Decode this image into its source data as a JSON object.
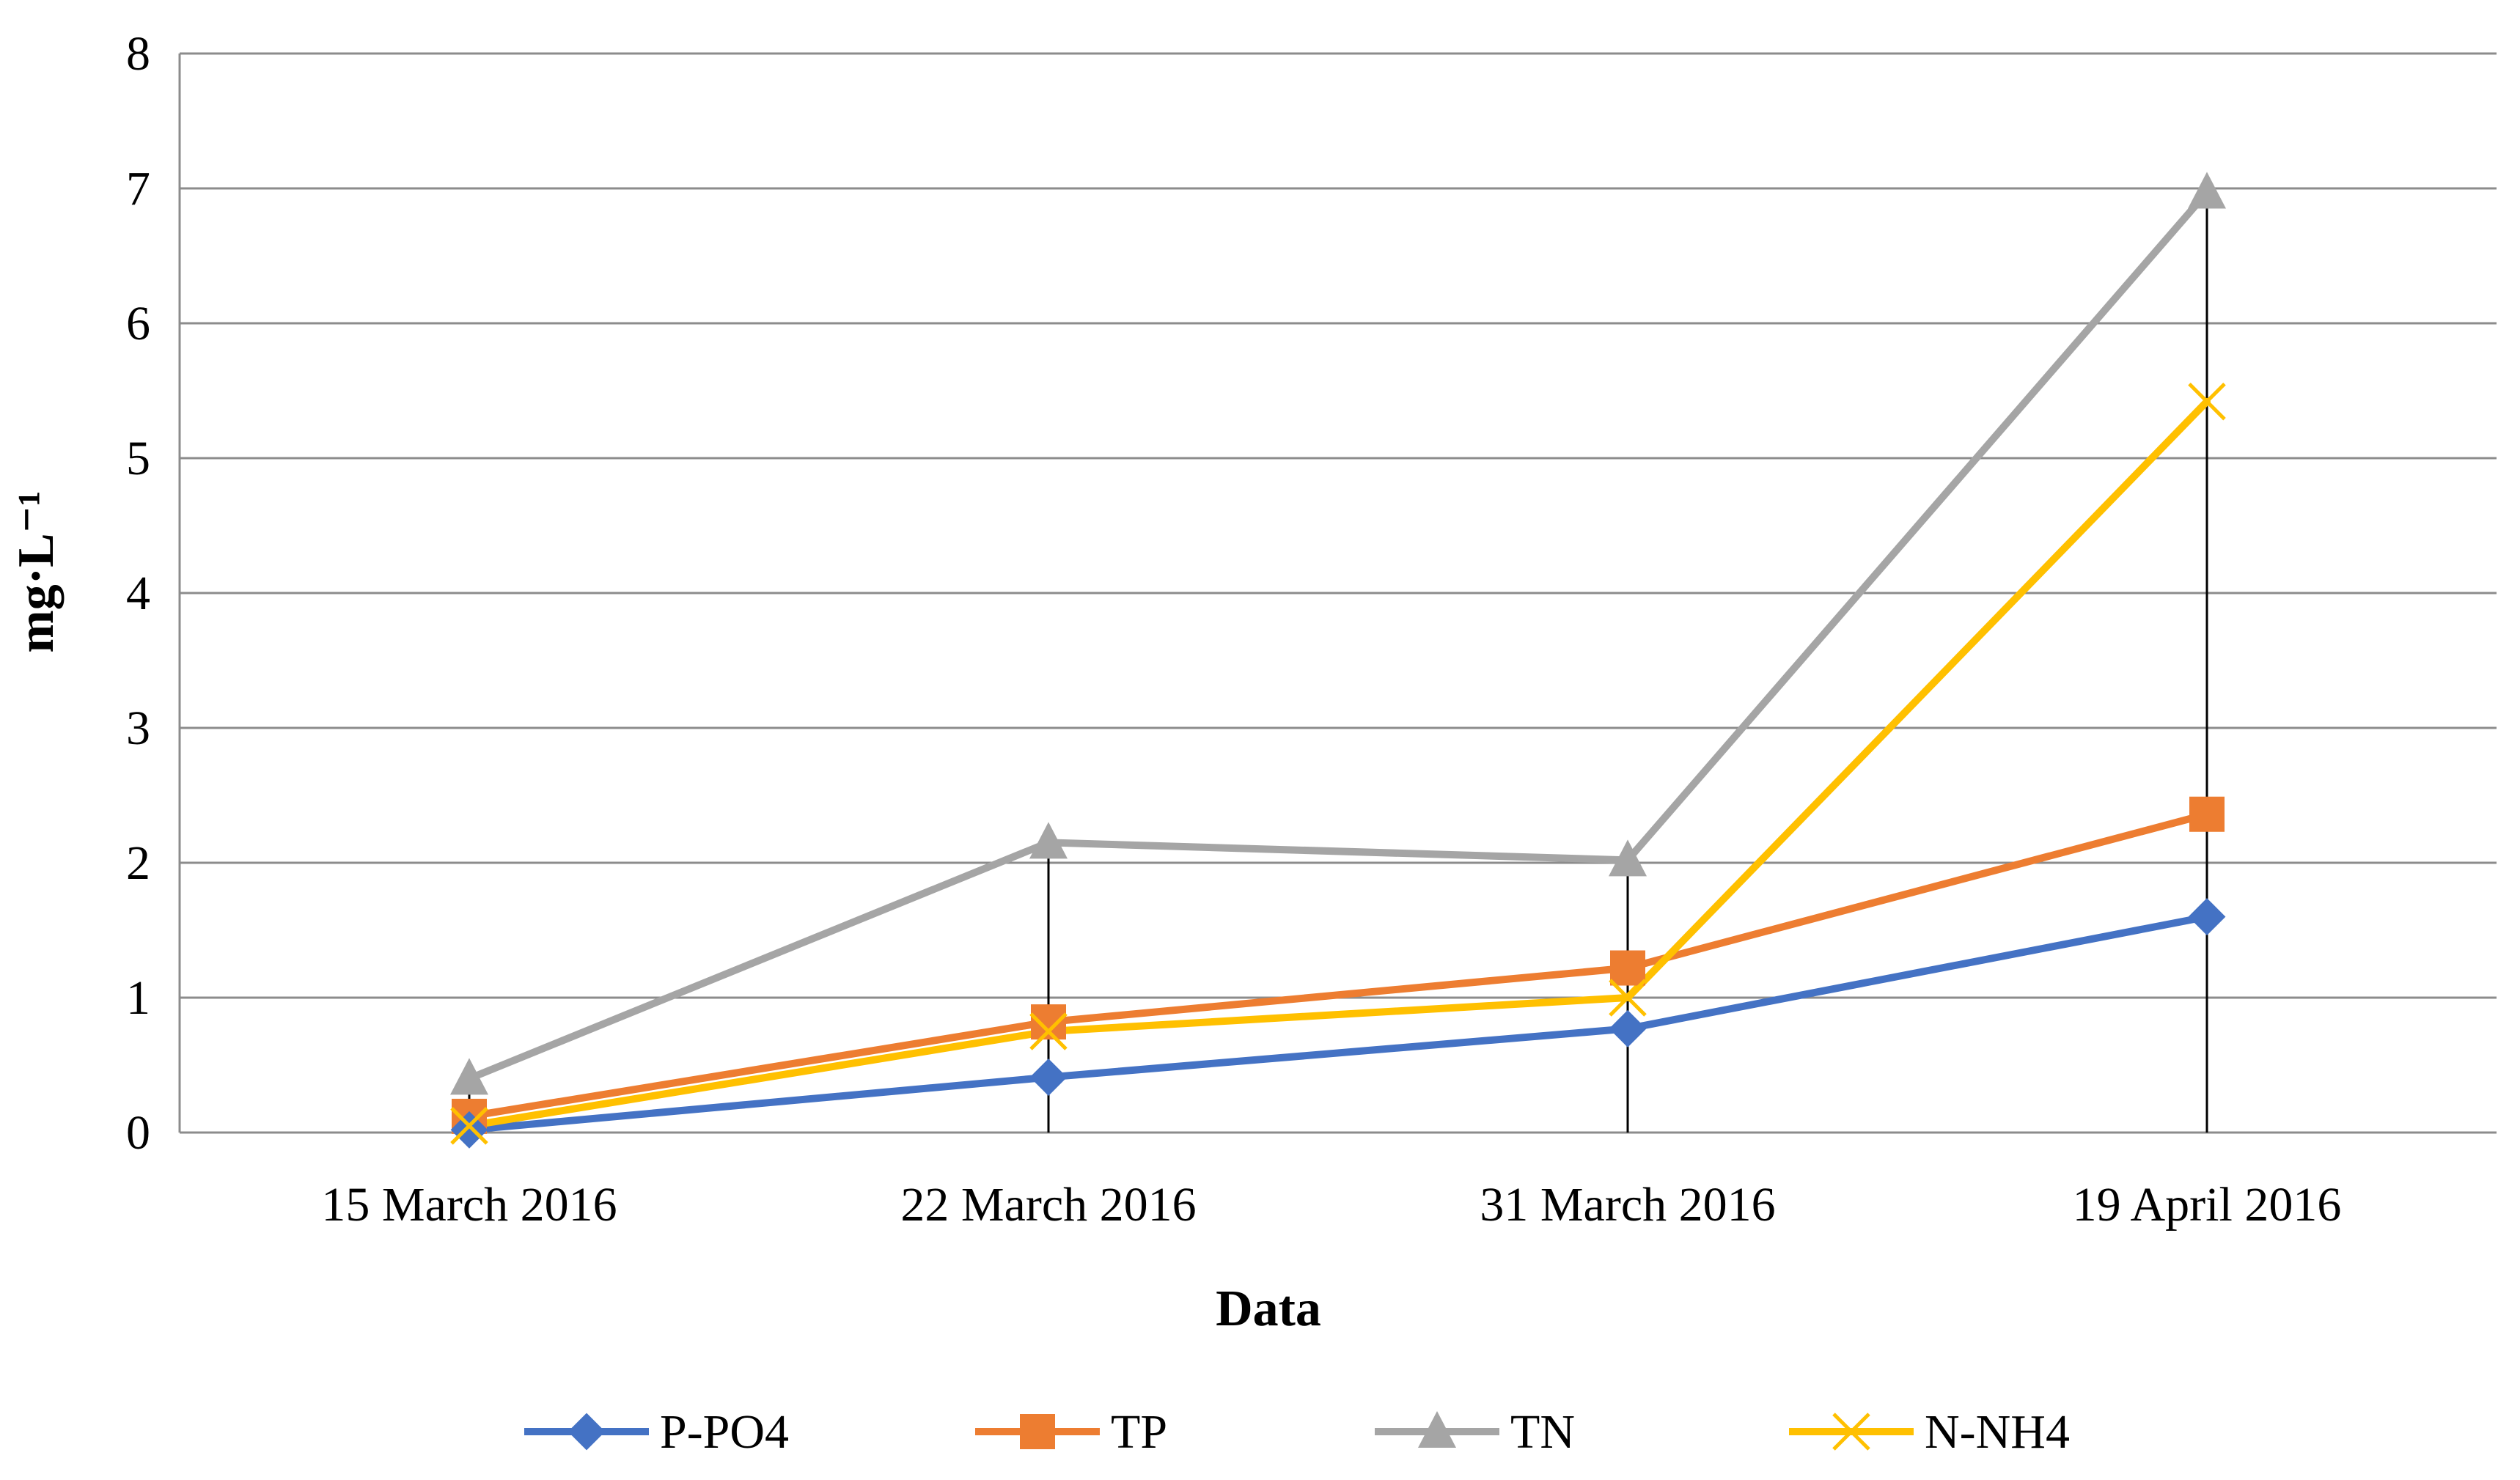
{
  "chart_data": {
    "type": "line",
    "categories": [
      "15 March 2016",
      "22 March 2016",
      "31 March 2016",
      "19 April 2016"
    ],
    "series": [
      {
        "name": "P-PO4",
        "values": [
          0.02,
          0.41,
          0.77,
          1.6
        ],
        "color": "#4472C4",
        "marker": "diamond"
      },
      {
        "name": "TP",
        "values": [
          0.12,
          0.82,
          1.22,
          2.36
        ],
        "color": "#ED7D31",
        "marker": "square"
      },
      {
        "name": "TN",
        "values": [
          0.4,
          2.15,
          2.02,
          6.97
        ],
        "color": "#A5A5A5",
        "marker": "triangle"
      },
      {
        "name": "N-NH4",
        "values": [
          0.05,
          0.75,
          1.0,
          5.42
        ],
        "color": "#FFC000",
        "marker": "x"
      }
    ],
    "ylim": [
      0,
      8
    ],
    "yticks": [
      "0",
      "1",
      "2",
      "3",
      "4",
      "5",
      "6",
      "7",
      "8"
    ],
    "xlabel": "Data",
    "ylabel": "mg·L⁻¹",
    "grid": true,
    "legend_position": "bottom",
    "drop_lines": true
  }
}
